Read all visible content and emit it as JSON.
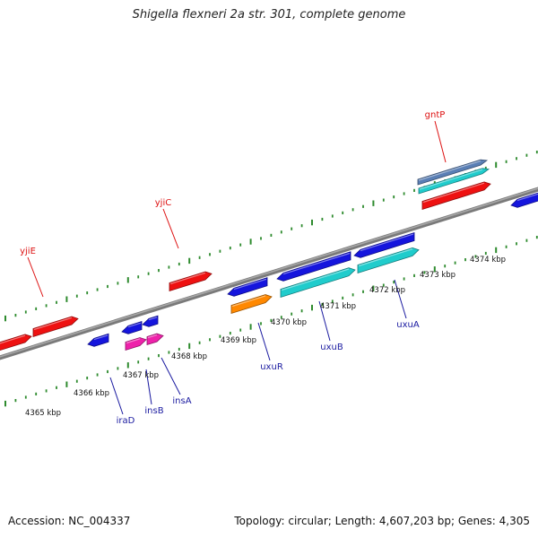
{
  "title": "Shigella flexneri 2a str. 301, complete genome",
  "footer": {
    "accession": "Accession: NC_004337",
    "summary": "Topology: circular; Length: 4,607,203 bp; Genes: 4,305"
  },
  "colors": {
    "ruler_ticks": "#2e8b2e",
    "backbone": "#808080",
    "forward_strand_gene": "#ee1111",
    "reverse_strand_gene": "#1515dd",
    "rna_or_other": "#20cccc",
    "insertion_element": "#ee22aa",
    "regulator": "#ff8800",
    "upper_label_color": "#dd1111",
    "lower_label_color": "#1a1aa0"
  },
  "ruler_labels": [
    "4365 kbp",
    "4366 kbp",
    "4367 kbp",
    "4368 kbp",
    "4369 kbp",
    "4370 kbp",
    "4371 kbp",
    "4372 kbp",
    "4373 kbp",
    "4374 kbp"
  ],
  "gene_labels_top": [
    "yjiE",
    "yjiC",
    "gntP"
  ],
  "gene_labels_bottom": [
    "iraD",
    "insB",
    "insA",
    "uxuR",
    "uxuB",
    "uxuA"
  ]
}
